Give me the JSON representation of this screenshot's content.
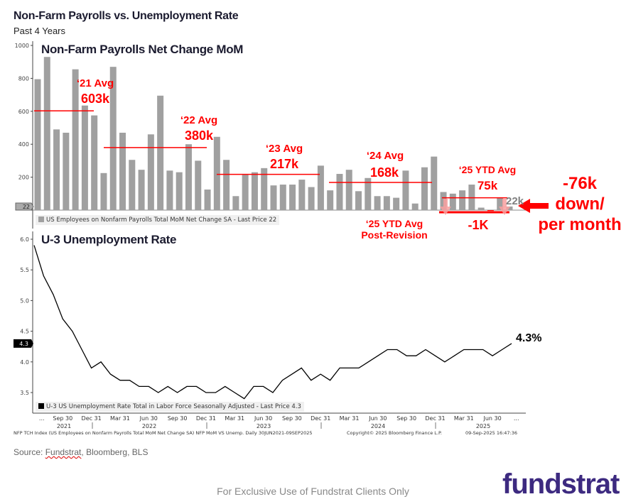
{
  "header": {
    "title": "Non-Farm Payrolls vs. Unemployment Rate",
    "subtitle": "Past 4 Years"
  },
  "chart_data": [
    {
      "type": "bar",
      "title": "Non-Farm Payrolls Net Change MoM",
      "legend": "US Employees on Nonfarm Payrolls Total MoM Net Change SA - Last Price 22",
      "last_price_tag": "22",
      "ylim": [
        0,
        1000
      ],
      "yticks": [
        "0",
        "200",
        "400",
        "600",
        "800",
        "1000"
      ],
      "x_range": [
        "Jun 2021",
        "Aug 2025"
      ],
      "values": [
        795,
        930,
        490,
        470,
        855,
        635,
        575,
        225,
        870,
        470,
        305,
        245,
        460,
        695,
        240,
        230,
        400,
        300,
        125,
        445,
        305,
        85,
        215,
        230,
        255,
        150,
        155,
        155,
        185,
        140,
        270,
        120,
        220,
        245,
        115,
        195,
        85,
        85,
        75,
        240,
        40,
        260,
        325,
        110,
        100,
        120,
        155,
        15,
        -5,
        75,
        22
      ],
      "color": "#a0a0a0",
      "averages": [
        {
          "label": "‘21 Avg",
          "value_label": "603k",
          "value": 603
        },
        {
          "label": "‘22 Avg",
          "value_label": "380k",
          "value": 380
        },
        {
          "label": "‘23 Avg",
          "value_label": "217k",
          "value": 217
        },
        {
          "label": "‘24 Avg",
          "value_label": "168k",
          "value": 168
        },
        {
          "label": "‘25 YTD Avg",
          "value_label": "75k",
          "value": 75
        }
      ],
      "revision": {
        "label_line1": "‘25 YTD Avg",
        "label_line2": "Post-Revision",
        "value_label": "-1K",
        "value": -1
      },
      "last_label": "22k",
      "callout": {
        "line1": "-76k",
        "line2": "down/",
        "line3": "per month"
      }
    },
    {
      "type": "line",
      "title": "U-3 Unemployment Rate",
      "legend": "U-3 US Unemployment Rate Total in Labor Force Seasonally Adjusted - Last Price 4.3",
      "last_price_tag": "4.3",
      "end_label": "4.3%",
      "ylim": [
        3.4,
        6.0
      ],
      "yticks": [
        "3.5",
        "4.0",
        "4.5",
        "5.0",
        "5.5",
        "6.0"
      ],
      "values": [
        5.9,
        5.4,
        5.1,
        4.7,
        4.5,
        4.2,
        3.9,
        4.0,
        3.8,
        3.7,
        3.7,
        3.6,
        3.6,
        3.5,
        3.6,
        3.5,
        3.6,
        3.6,
        3.5,
        3.5,
        3.6,
        3.5,
        3.4,
        3.6,
        3.6,
        3.5,
        3.7,
        3.8,
        3.9,
        3.7,
        3.8,
        3.7,
        3.9,
        3.9,
        3.9,
        4.0,
        4.1,
        4.2,
        4.2,
        4.1,
        4.1,
        4.2,
        4.1,
        4.0,
        4.1,
        4.2,
        4.2,
        4.2,
        4.1,
        4.2,
        4.3
      ],
      "color": "#000000"
    }
  ],
  "xaxis": {
    "tick_labels": [
      "...",
      "Sep 30",
      "Dec 31",
      "Mar 31",
      "Jun 30",
      "Sep 30",
      "Dec 31",
      "Mar 31",
      "Jun 30",
      "Sep 30",
      "Dec 31",
      "Mar 31",
      "Jun 30",
      "Sep 30",
      "Dec 31",
      "Mar 31",
      "Jun 30",
      "..."
    ],
    "years": [
      "2021",
      "2022",
      "2023",
      "2024",
      "2025"
    ]
  },
  "footer_left": "NFP TCH Index (US Employees on Nonfarm Payrolls Total MoM Net Change SA) NFP MoM VS Unemp.  Daily 30JUN2021-09SEP2025",
  "footer_mid": "Copyright© 2025 Bloomberg Finance L.P.",
  "footer_right": "09-Sep-2025 16:47:36",
  "source": {
    "prefix": "Source: ",
    "brand": "Fundstrat",
    "rest": ", Bloomberg, BLS"
  },
  "exclusive": "For Exclusive Use of Fundstrat Clients Only",
  "logo": "fundstrat",
  "colors": {
    "accent_red": "#ff0000",
    "bar": "#a0a0a0",
    "logo": "#3d2a80"
  }
}
